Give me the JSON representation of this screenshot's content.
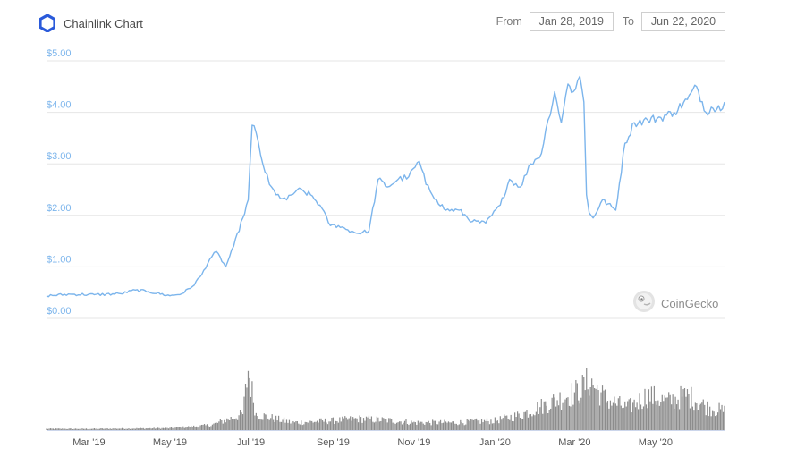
{
  "header": {
    "title": "Chainlink Chart",
    "from_label": "From",
    "from_value": "Jan 28, 2019",
    "to_label": "To",
    "to_value": "Jun 22, 2020",
    "logo_icon": "chainlink-hexagon-icon"
  },
  "watermark": {
    "text": "CoinGecko",
    "icon": "coingecko-gecko-icon"
  },
  "colors": {
    "price_line": "#7cb5ec",
    "volume_bar": "#8c8c8c",
    "axis_label": "#7cb5ec",
    "brand": "#2a5ada"
  },
  "chart_data": {
    "type": "line",
    "y_ticks": [
      "$0.00",
      "$1.00",
      "$2.00",
      "$3.00",
      "$4.00",
      "$5.00"
    ],
    "x_ticks": [
      "Mar '19",
      "May '19",
      "Jul '19",
      "Sep '19",
      "Nov '19",
      "Jan '20",
      "Mar '20",
      "May '20"
    ],
    "ylim": [
      0,
      5
    ],
    "x_range": [
      "2019-01-28",
      "2020-06-22"
    ],
    "grid": true,
    "price": {
      "x": [
        "2019-01-28",
        "2019-02-15",
        "2019-03-05",
        "2019-03-25",
        "2019-04-05",
        "2019-04-15",
        "2019-05-01",
        "2019-05-10",
        "2019-05-18",
        "2019-05-25",
        "2019-05-31",
        "2019-06-05",
        "2019-06-12",
        "2019-06-18",
        "2019-06-25",
        "2019-06-29",
        "2019-07-02",
        "2019-07-05",
        "2019-07-10",
        "2019-07-15",
        "2019-07-20",
        "2019-07-28",
        "2019-08-05",
        "2019-08-15",
        "2019-08-22",
        "2019-08-30",
        "2019-09-05",
        "2019-09-12",
        "2019-09-20",
        "2019-09-28",
        "2019-10-05",
        "2019-10-12",
        "2019-10-20",
        "2019-10-28",
        "2019-11-05",
        "2019-11-10",
        "2019-11-18",
        "2019-11-25",
        "2019-12-05",
        "2019-12-15",
        "2019-12-25",
        "2020-01-05",
        "2020-01-12",
        "2020-01-20",
        "2020-01-28",
        "2020-02-05",
        "2020-02-10",
        "2020-02-15",
        "2020-02-20",
        "2020-02-25",
        "2020-02-29",
        "2020-03-05",
        "2020-03-08",
        "2020-03-10",
        "2020-03-12",
        "2020-03-15",
        "2020-03-22",
        "2020-04-01",
        "2020-04-08",
        "2020-04-15",
        "2020-04-25",
        "2020-05-05",
        "2020-05-15",
        "2020-05-25",
        "2020-06-01",
        "2020-06-08",
        "2020-06-12",
        "2020-06-16",
        "2020-06-22"
      ],
      "y": [
        0.44,
        0.47,
        0.46,
        0.48,
        0.55,
        0.52,
        0.44,
        0.48,
        0.62,
        0.85,
        1.15,
        1.3,
        1.0,
        1.4,
        1.95,
        2.3,
        3.75,
        3.6,
        3.0,
        2.6,
        2.4,
        2.3,
        2.5,
        2.4,
        2.2,
        1.8,
        1.8,
        1.72,
        1.65,
        1.7,
        2.7,
        2.55,
        2.7,
        2.75,
        3.05,
        2.6,
        2.3,
        2.1,
        2.1,
        1.88,
        1.85,
        2.2,
        2.7,
        2.55,
        3.0,
        3.2,
        3.85,
        4.4,
        3.8,
        4.55,
        4.4,
        4.7,
        4.2,
        2.4,
        2.05,
        1.95,
        2.3,
        2.1,
        3.4,
        3.8,
        3.85,
        3.9,
        4.0,
        4.25,
        4.5,
        4.0,
        4.1,
        4.05,
        4.2
      ]
    },
    "volume": {
      "x": [
        "2019-01-28",
        "2019-03-01",
        "2019-05-01",
        "2019-06-01",
        "2019-06-25",
        "2019-06-29",
        "2019-07-05",
        "2019-08-01",
        "2019-09-01",
        "2019-09-20",
        "2019-10-10",
        "2019-11-01",
        "2019-12-01",
        "2020-01-01",
        "2020-01-20",
        "2020-02-10",
        "2020-02-25",
        "2020-03-05",
        "2020-03-12",
        "2020-03-25",
        "2020-04-10",
        "2020-04-25",
        "2020-05-10",
        "2020-05-25",
        "2020-06-10",
        "2020-06-22"
      ],
      "v": [
        0.02,
        0.02,
        0.03,
        0.08,
        0.25,
        0.95,
        0.25,
        0.12,
        0.15,
        0.18,
        0.16,
        0.12,
        0.12,
        0.15,
        0.24,
        0.42,
        0.55,
        0.62,
        0.78,
        0.48,
        0.35,
        0.55,
        0.45,
        0.55,
        0.35,
        0.3
      ]
    }
  }
}
